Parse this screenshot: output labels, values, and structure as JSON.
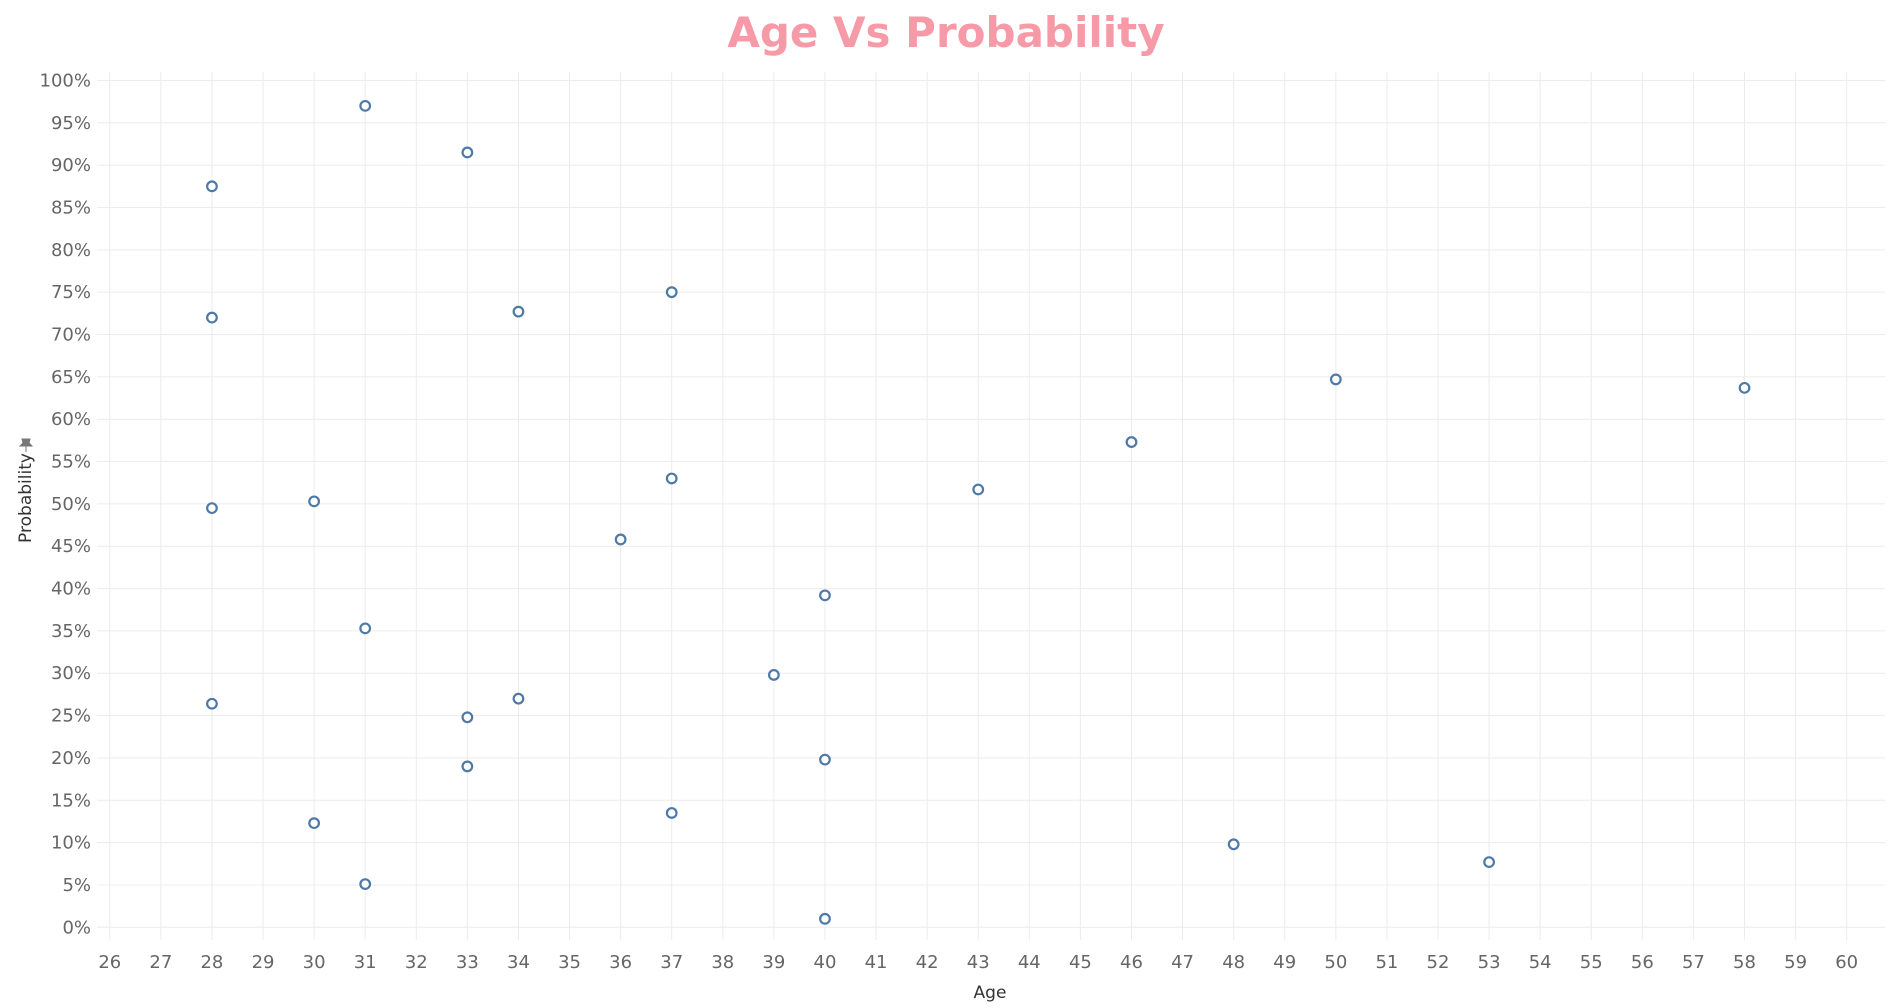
{
  "chart_data": {
    "type": "scatter",
    "title": "Age Vs Probability",
    "xlabel": "Age",
    "ylabel": "Probability",
    "ylabel_icon": "pin-icon",
    "xlim": [
      25.75,
      60.75
    ],
    "ylim": [
      -0.015,
      1.01
    ],
    "x_ticks": [
      26,
      27,
      28,
      29,
      30,
      31,
      32,
      33,
      34,
      35,
      36,
      37,
      38,
      39,
      40,
      41,
      42,
      43,
      44,
      45,
      46,
      47,
      48,
      49,
      50,
      51,
      52,
      53,
      54,
      55,
      56,
      57,
      58,
      59,
      60
    ],
    "y_ticks": [
      0,
      0.05,
      0.1,
      0.15,
      0.2,
      0.25,
      0.3,
      0.35,
      0.4,
      0.45,
      0.5,
      0.55,
      0.6,
      0.65,
      0.7,
      0.75,
      0.8,
      0.85,
      0.9,
      0.95,
      1.0
    ],
    "y_tick_format": "percent",
    "grid": true,
    "colors": {
      "title": "#f59aa6",
      "marker": "#4e79a7",
      "grid": "#ececec",
      "tick": "#666666"
    },
    "points": [
      {
        "x": 31,
        "y": 0.97
      },
      {
        "x": 33,
        "y": 0.915
      },
      {
        "x": 28,
        "y": 0.875
      },
      {
        "x": 37,
        "y": 0.75
      },
      {
        "x": 34,
        "y": 0.727
      },
      {
        "x": 28,
        "y": 0.72
      },
      {
        "x": 50,
        "y": 0.647
      },
      {
        "x": 58,
        "y": 0.637
      },
      {
        "x": 46,
        "y": 0.573
      },
      {
        "x": 37,
        "y": 0.53
      },
      {
        "x": 43,
        "y": 0.517
      },
      {
        "x": 30,
        "y": 0.503
      },
      {
        "x": 28,
        "y": 0.495
      },
      {
        "x": 36,
        "y": 0.458
      },
      {
        "x": 40,
        "y": 0.392
      },
      {
        "x": 31,
        "y": 0.353
      },
      {
        "x": 39,
        "y": 0.298
      },
      {
        "x": 34,
        "y": 0.27
      },
      {
        "x": 28,
        "y": 0.264
      },
      {
        "x": 33,
        "y": 0.248
      },
      {
        "x": 40,
        "y": 0.198
      },
      {
        "x": 33,
        "y": 0.19
      },
      {
        "x": 37,
        "y": 0.135
      },
      {
        "x": 30,
        "y": 0.123
      },
      {
        "x": 48,
        "y": 0.098
      },
      {
        "x": 53,
        "y": 0.077
      },
      {
        "x": 31,
        "y": 0.051
      },
      {
        "x": 40,
        "y": 0.01
      }
    ]
  }
}
